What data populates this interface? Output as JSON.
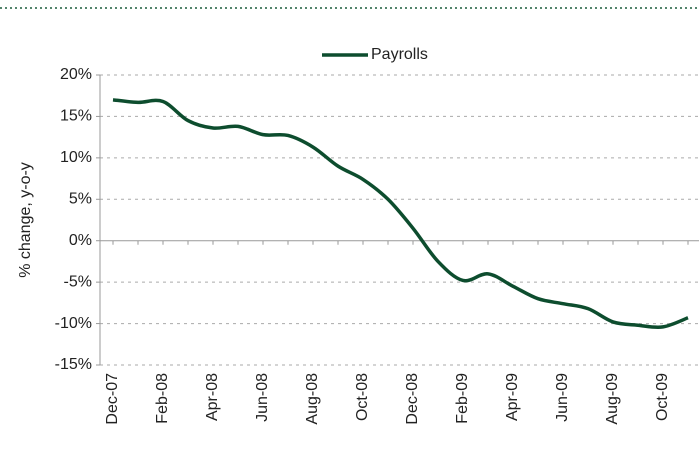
{
  "chart_data": {
    "type": "line",
    "y_label": "% change, y-o-y",
    "categories": [
      "Dec-07",
      null,
      "Feb-08",
      null,
      "Apr-08",
      null,
      "Jun-08",
      null,
      "Aug-08",
      null,
      "Oct-08",
      null,
      "Dec-08",
      null,
      "Feb-09",
      null,
      "Apr-09",
      null,
      "Jun-09",
      null,
      "Aug-09",
      null,
      "Oct-09",
      null
    ],
    "series": [
      {
        "name": "Payrolls",
        "color": "#0d4d2e",
        "values": [
          17.0,
          16.7,
          16.8,
          14.5,
          13.6,
          13.8,
          12.8,
          12.7,
          11.3,
          9.0,
          7.4,
          5.0,
          1.5,
          -2.5,
          -4.8,
          -4.0,
          -5.5,
          -7.0,
          -7.6,
          -8.2,
          -9.8,
          -10.2,
          -10.4,
          -9.3
        ]
      }
    ],
    "ylim": [
      -15,
      20
    ],
    "yticks": [
      {
        "value": -15,
        "label": "-15%"
      },
      {
        "value": -10,
        "label": "-10%"
      },
      {
        "value": -5,
        "label": "-5%"
      },
      {
        "value": 0,
        "label": "0%"
      },
      {
        "value": 5,
        "label": "5%"
      },
      {
        "value": 10,
        "label": "10%"
      },
      {
        "value": 15,
        "label": "15%"
      },
      {
        "value": 20,
        "label": "20%"
      }
    ],
    "grid": true,
    "legend": "top"
  }
}
